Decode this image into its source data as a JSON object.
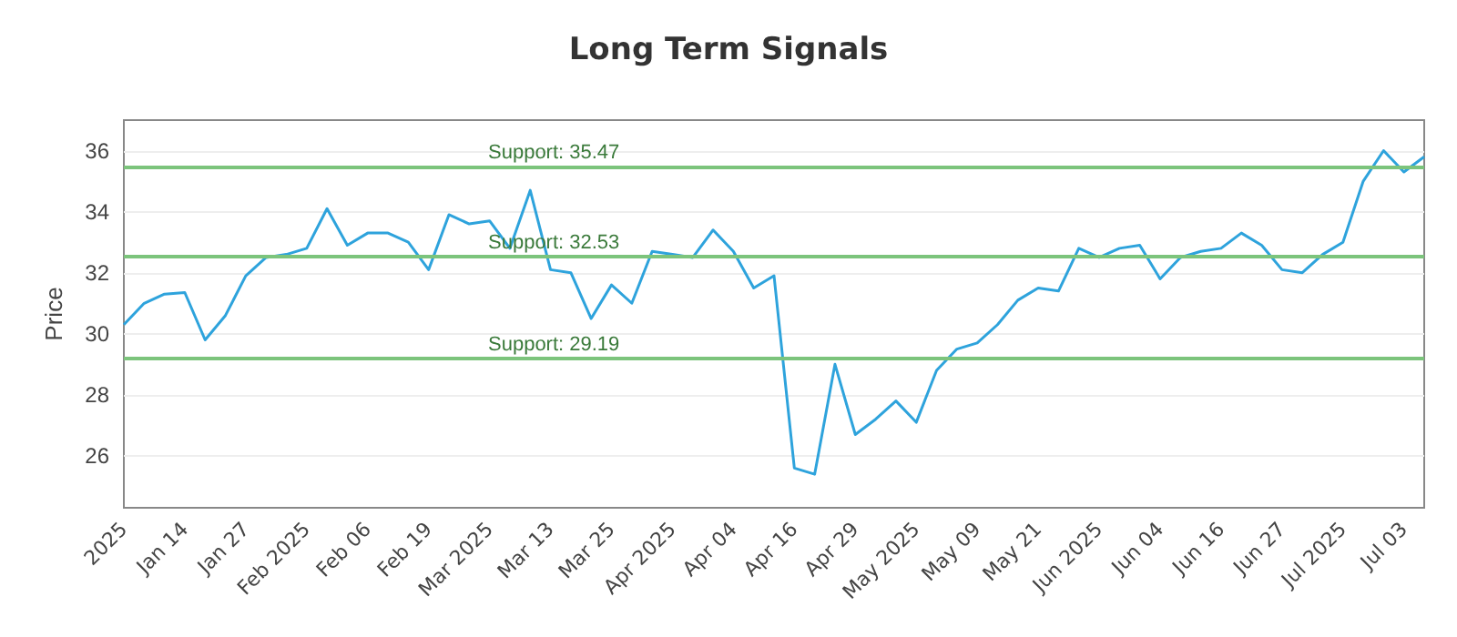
{
  "chart_data": {
    "type": "line",
    "title": "Long Term Signals",
    "ylabel": "Price",
    "categories": [
      "2025",
      null,
      null,
      "Jan 14",
      null,
      null,
      "Jan 27",
      null,
      null,
      "Feb 2025",
      null,
      null,
      "Feb 06",
      null,
      null,
      "Feb 19",
      null,
      null,
      "Mar 2025",
      null,
      null,
      "Mar 13",
      null,
      null,
      "Mar 25",
      null,
      null,
      "Apr 2025",
      null,
      null,
      "Apr 04",
      null,
      null,
      "Apr 16",
      null,
      null,
      "Apr 29",
      null,
      null,
      "May 2025",
      null,
      null,
      "May 09",
      null,
      null,
      "May 21",
      null,
      null,
      "Jun 2025",
      null,
      null,
      "Jun 04",
      null,
      null,
      "Jun 16",
      null,
      null,
      "Jun 27",
      null,
      null,
      "Jul 2025",
      null,
      null,
      "Jul 03",
      null
    ],
    "series": [
      {
        "color": "#2ea3dc",
        "values": [
          30.3,
          31.0,
          31.3,
          31.35,
          29.8,
          30.6,
          31.9,
          32.5,
          32.6,
          32.8,
          34.1,
          32.9,
          33.3,
          33.3,
          33.0,
          32.1,
          33.9,
          33.6,
          33.7,
          32.8,
          34.7,
          32.1,
          32.0,
          30.5,
          31.6,
          31.0,
          32.7,
          32.6,
          32.5,
          33.4,
          32.7,
          31.5,
          31.9,
          25.6,
          25.4,
          29.0,
          26.7,
          27.2,
          27.8,
          27.1,
          28.8,
          29.5,
          29.7,
          30.3,
          31.1,
          31.5,
          31.4,
          32.8,
          32.5,
          32.8,
          32.9,
          31.8,
          32.5,
          32.7,
          32.8,
          33.3,
          32.9,
          32.1,
          32.0,
          32.6,
          33.0,
          35.0,
          36.0,
          35.3,
          35.8
        ]
      }
    ],
    "ylim": [
      24.3,
      37
    ],
    "yticks": [
      26,
      28,
      30,
      32,
      34,
      36
    ],
    "grid": "y",
    "marker": "none",
    "line_style": "solid",
    "ref_lines": [
      {
        "axis": "y",
        "value": 35.47,
        "label": "Support: 35.47",
        "color": "#7cc47c"
      },
      {
        "axis": "y",
        "value": 32.53,
        "label": "Support: 32.53",
        "color": "#7cc47c"
      },
      {
        "axis": "y",
        "value": 29.19,
        "label": "Support: 29.19",
        "color": "#7cc47c"
      }
    ]
  }
}
